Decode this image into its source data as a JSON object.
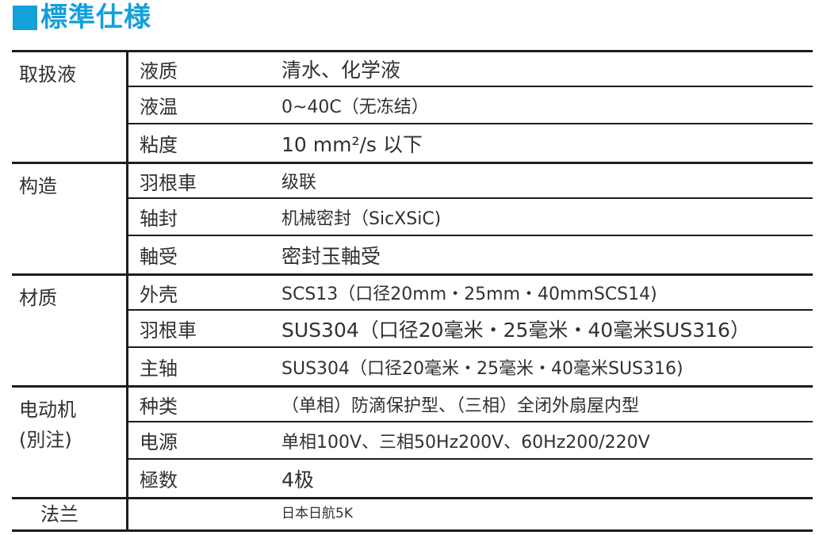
{
  "colors": {
    "accent": "#14a0da",
    "line": "#1f1c1a",
    "ink": "#33302d"
  },
  "title": {
    "text": "標準仕様"
  },
  "table": {
    "sections": [
      {
        "category": "取扱液",
        "category_line2": "",
        "rows": [
          {
            "label": "液质",
            "value": "清水、化学液"
          },
          {
            "label": "液温",
            "value": "0~40C（无冻结）"
          },
          {
            "label": "粘度",
            "value": "10 mm²/s 以下"
          }
        ]
      },
      {
        "category": "构造",
        "category_line2": "",
        "rows": [
          {
            "label": "羽根車",
            "value": "级联"
          },
          {
            "label": "轴封",
            "value": "机械密封（SicXSiC)"
          },
          {
            "label": "軸受",
            "value": "密封玉軸受"
          }
        ]
      },
      {
        "category": "材质",
        "category_line2": "",
        "rows": [
          {
            "label": "外壳",
            "value": "SCS13（口径20mm・25mm・40mmSCS14)"
          },
          {
            "label": "羽根車",
            "value": "SUS304（口径20毫米・25毫米・40毫米SUS316）"
          },
          {
            "label": "主轴",
            "value": "SUS304（口径20毫米・25毫米・40毫米SUS316)"
          }
        ]
      },
      {
        "category": "电动机",
        "category_line2": "(別注)",
        "rows": [
          {
            "label": "种类",
            "value": "（单相）防滴保护型、（三相）全闭外扇屋内型"
          },
          {
            "label": "电源",
            "value": "单相100V、三相50Hz200V、60Hz200/220V"
          },
          {
            "label": "極数",
            "value": "4极"
          }
        ]
      },
      {
        "category": "法兰",
        "category_line2": "",
        "rows": [
          {
            "label": "",
            "value": "日本日航5K"
          }
        ]
      }
    ]
  }
}
